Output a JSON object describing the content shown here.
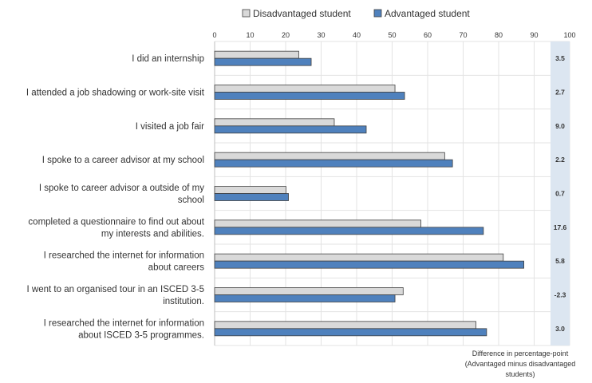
{
  "chart_data": {
    "type": "bar",
    "orientation": "horizontal",
    "categories": [
      [
        "I did an internship"
      ],
      [
        "I attended a job shadowing or work-site visit"
      ],
      [
        "I visited a job fair"
      ],
      [
        "I spoke to a career advisor at my school"
      ],
      [
        "I spoke to career advisor a outside of my",
        "school"
      ],
      [
        "completed a questionnaire to find out about",
        "my interests and abilities."
      ],
      [
        "I researched the internet for information",
        "about careers"
      ],
      [
        "I went to an organised tour in an  ISCED 3-5",
        "institution."
      ],
      [
        "I researched the internet for information",
        "about  ISCED 3-5 programmes."
      ]
    ],
    "series": [
      {
        "name": "Disadvantaged student",
        "color": "#d9d9d9",
        "values": [
          23.7,
          50.8,
          33.7,
          64.8,
          20.1,
          58.1,
          81.3,
          53.1,
          73.6
        ]
      },
      {
        "name": "Advantaged student",
        "color": "#4f81bd",
        "values": [
          27.2,
          53.5,
          42.7,
          67.0,
          20.8,
          75.7,
          87.1,
          50.8,
          76.6
        ]
      }
    ],
    "xlim": [
      0,
      100
    ],
    "xticks": [
      "0",
      "10",
      "20",
      "30",
      "40",
      "50",
      "60",
      "70",
      "80",
      "90",
      "100"
    ],
    "legend_position": "top",
    "difference_column": {
      "values": [
        "3.5",
        "2.7",
        "9.0",
        "2.2",
        "0.7",
        "17.6",
        "5.8",
        "-2.3",
        "3.0"
      ],
      "caption": [
        "Difference in percentage-point",
        "(Advantaged minus disadvantaged",
        "students)"
      ],
      "band_color": "#dce6f1"
    },
    "grid": true
  }
}
